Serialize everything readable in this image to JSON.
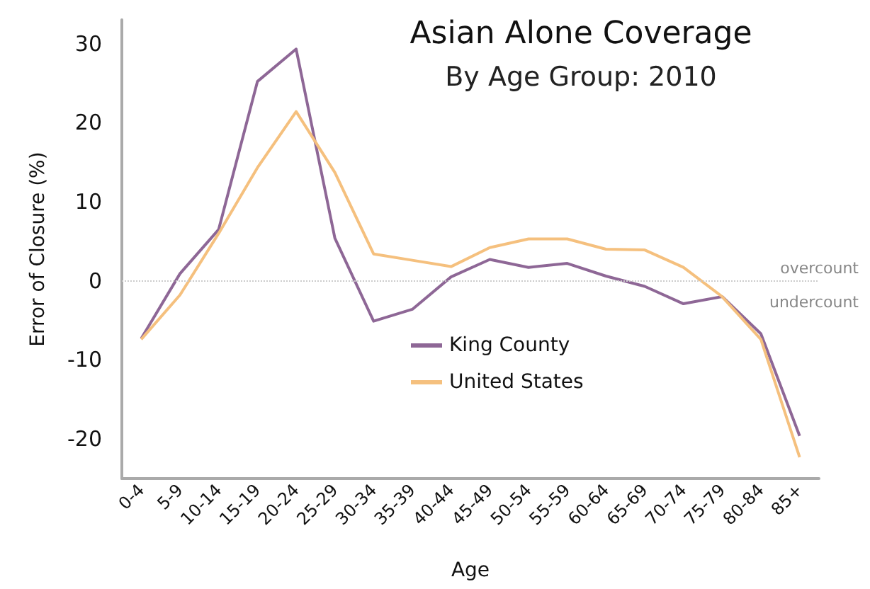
{
  "chart_data": {
    "type": "line",
    "title": "Asian Alone Coverage",
    "subtitle": "By Age Group: 2010",
    "xlabel": "Age",
    "ylabel": "Error of Closure (%)",
    "categories": [
      "0-4",
      "5-9",
      "10-14",
      "15-19",
      "20-24",
      "25-29",
      "30-34",
      "35-39",
      "40-44",
      "45-49",
      "50-54",
      "55-59",
      "60-64",
      "65-69",
      "70-74",
      "75-79",
      "80-84",
      "85+"
    ],
    "series": [
      {
        "name": "King County",
        "color": "#8e6796",
        "values": [
          -7.3,
          0.9,
          6.5,
          25.2,
          29.3,
          5.4,
          -5.1,
          -3.6,
          0.5,
          2.7,
          1.7,
          2.2,
          0.6,
          -0.7,
          -2.9,
          -2.0,
          -6.7,
          -19.6
        ]
      },
      {
        "name": "United States",
        "color": "#f5c07e",
        "values": [
          -7.4,
          -1.8,
          6.0,
          14.3,
          21.4,
          13.7,
          3.4,
          2.6,
          1.8,
          4.2,
          5.3,
          5.3,
          4.0,
          3.9,
          1.7,
          -2.0,
          -7.4,
          -22.3
        ]
      }
    ],
    "ylim": [
      -25,
      33
    ],
    "yticks": [
      -20,
      -10,
      0,
      10,
      20,
      30
    ],
    "grid": false,
    "legend": "center",
    "marker": "none",
    "line_style": "solid",
    "ref_lines": [
      {
        "axis": "y",
        "value": 0,
        "color": "#cccccc",
        "line_style": "dotted"
      }
    ],
    "annotations": [
      "overcount",
      "undercount"
    ]
  }
}
